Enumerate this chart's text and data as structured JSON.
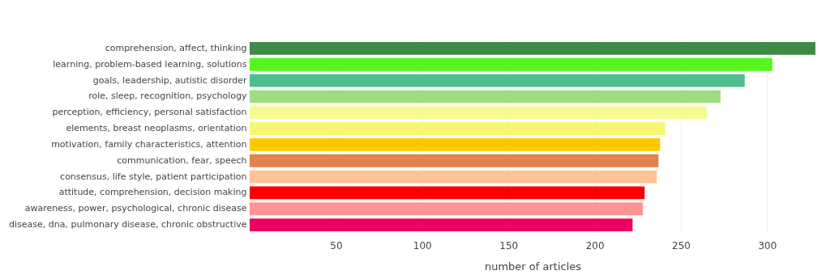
{
  "chart_data": {
    "type": "bar",
    "orientation": "horizontal",
    "xlabel": "number of articles",
    "categories": [
      "comprehension, affect, thinking",
      "learning, problem-based learning, solutions",
      "goals, leadership, autistic disorder",
      "role, sleep, recognition, psychology",
      "perception, efficiency, personal satisfaction",
      "elements, breast neoplasms, orientation",
      "motivation, family characteristics, attention",
      "communication, fear, speech",
      "consensus, life style, patient participation",
      "attitude, comprehension, decision making",
      "awareness, power, psychological, chronic disease",
      "disease, dna, pulmonary disease, chronic obstructive"
    ],
    "values": [
      328,
      303,
      287,
      273,
      265,
      241,
      238,
      237,
      236,
      229,
      228,
      222
    ],
    "colors": [
      "#3f8a47",
      "#56f71f",
      "#4dbf8e",
      "#9ddf7e",
      "#f7fa93",
      "#f7f774",
      "#ffc800",
      "#e3824a",
      "#ffc396",
      "#ff0000",
      "#ff9494",
      "#ee0060"
    ],
    "xlim": [
      0,
      328
    ],
    "xticks": [
      50,
      100,
      150,
      200,
      250,
      300
    ],
    "grid": "x"
  }
}
